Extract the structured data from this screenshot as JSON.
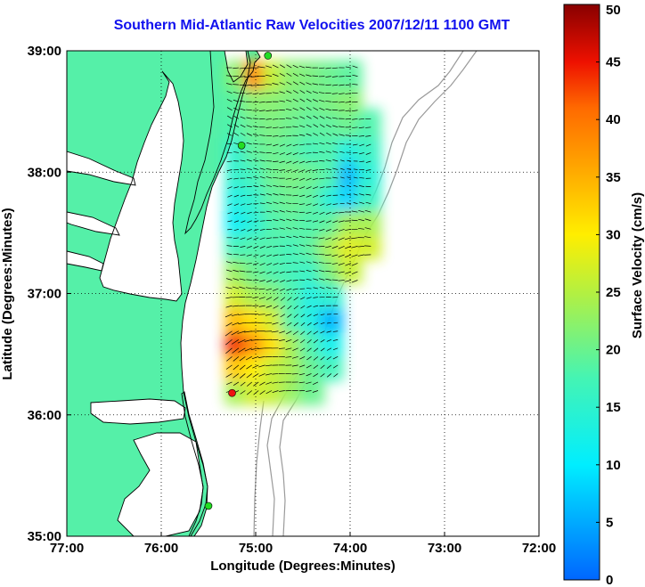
{
  "title": "Southern Mid-Atlantic Raw Velocities 2007/12/11 1100 GMT",
  "xaxis": {
    "label": "Longitude (Degrees:Minutes)",
    "ticks": [
      {
        "value": -77,
        "label": "77:00"
      },
      {
        "value": -76,
        "label": "76:00"
      },
      {
        "value": -75,
        "label": "75:00"
      },
      {
        "value": -74,
        "label": "74:00"
      },
      {
        "value": -73,
        "label": "73:00"
      },
      {
        "value": -72,
        "label": "72:00"
      }
    ],
    "range": [
      -77,
      -72
    ]
  },
  "yaxis": {
    "label": "Latitude (Degrees:Minutes)",
    "ticks": [
      {
        "value": 35,
        "label": "35:00"
      },
      {
        "value": 36,
        "label": "36:00"
      },
      {
        "value": 37,
        "label": "37:00"
      },
      {
        "value": 38,
        "label": "38:00"
      },
      {
        "value": 39,
        "label": "39:00"
      }
    ],
    "range": [
      35,
      39
    ]
  },
  "colorbar": {
    "label": "Surface Velocity (cm/s)",
    "range": [
      0,
      50
    ],
    "ticks": [
      {
        "value": 0,
        "label": "0"
      },
      {
        "value": 5,
        "label": "5"
      },
      {
        "value": 10,
        "label": "10"
      },
      {
        "value": 15,
        "label": "15"
      },
      {
        "value": 20,
        "label": "20"
      },
      {
        "value": 25,
        "label": "25"
      },
      {
        "value": 30,
        "label": "30"
      },
      {
        "value": 35,
        "label": "35"
      },
      {
        "value": 40,
        "label": "40"
      },
      {
        "value": 45,
        "label": "45"
      },
      {
        "value": 50,
        "label": "50"
      }
    ]
  },
  "colors": {
    "land": "#55f0a8",
    "water": "#ffffff",
    "coastline": "#000000",
    "bathymetry": "#9a9a9a",
    "grid": "#000000",
    "title": "#1010ee",
    "station_active": "#22dd22",
    "station_selected": "#ee1111"
  },
  "grid": "dotted",
  "stations": [
    {
      "lon": -74.87,
      "lat": 38.96,
      "status": "active"
    },
    {
      "lon": -75.15,
      "lat": 38.22,
      "status": "active"
    },
    {
      "lon": -75.25,
      "lat": 36.18,
      "status": "selected"
    },
    {
      "lon": -75.5,
      "lat": 35.25,
      "status": "active"
    }
  ],
  "speed_field_cm_s": {
    "lons": [
      -75.2,
      -75.0,
      -74.8,
      -74.6,
      -74.4,
      -74.2,
      -74.0,
      -73.8
    ],
    "lats": [
      36.2,
      36.4,
      36.6,
      36.8,
      37.0,
      37.2,
      37.4,
      37.6,
      37.8,
      38.0,
      38.2,
      38.4,
      38.6,
      38.8
    ],
    "values": [
      [
        24,
        27,
        26,
        23,
        20,
        null,
        null,
        null
      ],
      [
        33,
        30,
        26,
        24,
        20,
        17,
        null,
        null
      ],
      [
        44,
        38,
        31,
        24,
        18,
        12,
        null,
        null
      ],
      [
        34,
        31,
        27,
        18,
        13,
        6,
        null,
        null
      ],
      [
        27,
        24,
        22,
        18,
        13,
        15,
        null,
        null
      ],
      [
        23,
        20,
        18,
        17,
        16,
        21,
        26,
        null
      ],
      [
        17,
        18,
        18,
        17,
        19,
        24,
        28,
        27
      ],
      [
        11,
        14,
        18,
        19,
        18,
        19,
        24,
        24
      ],
      [
        13,
        15,
        19,
        20,
        19,
        14,
        8,
        16
      ],
      [
        15,
        17,
        20,
        21,
        20,
        18,
        6,
        14
      ],
      [
        15,
        19,
        20,
        19,
        17,
        18,
        13,
        16
      ],
      [
        18,
        20,
        21,
        20,
        19,
        19,
        20,
        18
      ],
      [
        19,
        22,
        22,
        21,
        20,
        21,
        22,
        null
      ],
      [
        22,
        38,
        26,
        22,
        21,
        20,
        19,
        null
      ]
    ]
  }
}
